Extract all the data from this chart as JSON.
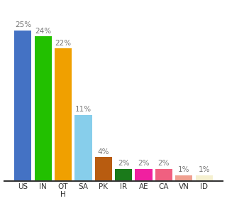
{
  "categories": [
    "US",
    "IN",
    "OT\nH",
    "SA",
    "PK",
    "IR",
    "AE",
    "CA",
    "VN",
    "ID"
  ],
  "values": [
    25,
    24,
    22,
    11,
    4,
    2,
    2,
    2,
    1,
    1
  ],
  "bar_colors": [
    "#4472c4",
    "#22c000",
    "#f0a000",
    "#87ceeb",
    "#b85c10",
    "#1a7a1a",
    "#f020a0",
    "#f06080",
    "#f0a090",
    "#f5f0d0"
  ],
  "ylim": [
    0,
    29
  ],
  "background_color": "#ffffff",
  "label_fontsize": 7.5,
  "tick_fontsize": 7.5
}
